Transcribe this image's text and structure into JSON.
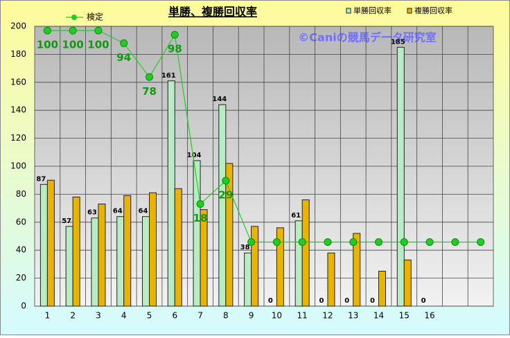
{
  "chart_data": {
    "type": "bar",
    "title": "単勝、複勝回収率",
    "annotation": "©Caniの競馬データ研究室",
    "categories": [
      "1",
      "2",
      "3",
      "4",
      "5",
      "6",
      "7",
      "8",
      "9",
      "10",
      "11",
      "12",
      "13",
      "14",
      "15",
      "16",
      null,
      null
    ],
    "series": [
      {
        "name": "単勝回収率",
        "type": "bar",
        "color": "#b8ecc4",
        "labels": true,
        "values": [
          87,
          57,
          63,
          64,
          64,
          161,
          104,
          144,
          38,
          0,
          61,
          0,
          0,
          0,
          185,
          0,
          null,
          null
        ]
      },
      {
        "name": "複勝回収率",
        "type": "bar",
        "color": "#e8b400",
        "labels": false,
        "values": [
          90,
          78,
          73,
          79,
          81,
          84,
          69,
          102,
          57,
          56,
          76,
          38,
          52,
          25,
          33,
          null,
          null,
          null
        ]
      },
      {
        "name": "検定",
        "type": "line",
        "axis": "y2",
        "color": "#22cc22",
        "labels": true,
        "values": [
          100,
          100,
          100,
          94,
          78,
          98,
          18,
          29,
          0,
          0,
          0,
          0,
          0,
          0,
          0,
          0,
          0,
          0
        ],
        "value_labels": [
          "100",
          "100",
          "100",
          "94",
          "78",
          "98",
          "18",
          "29",
          null,
          null,
          null,
          null,
          null,
          null,
          null,
          null,
          null,
          null
        ]
      }
    ],
    "ylim": [
      0,
      200
    ],
    "yticks": [
      0,
      20,
      40,
      60,
      80,
      100,
      120,
      140,
      160,
      180,
      200
    ],
    "y2lim": [
      -30.3,
      102
    ],
    "grid": true
  }
}
